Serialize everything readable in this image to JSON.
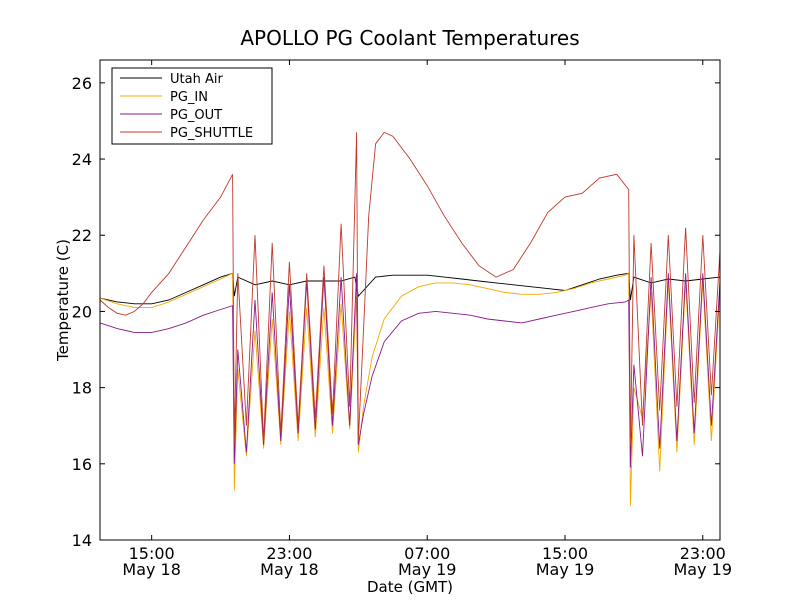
{
  "chart_data": {
    "type": "line",
    "title": "APOLLO PG Coolant Temperatures",
    "xlabel": "Date (GMT)",
    "ylabel": "Temperature (C)",
    "xlim": [
      12,
      48
    ],
    "ylim": [
      14,
      26.6
    ],
    "y_ticks": [
      14,
      16,
      18,
      20,
      22,
      24,
      26
    ],
    "x_ticks": [
      {
        "value": 15,
        "time": "15:00",
        "date": "May 18"
      },
      {
        "value": 23,
        "time": "23:00",
        "date": "May 18"
      },
      {
        "value": 31,
        "time": "07:00",
        "date": "May 19"
      },
      {
        "value": 39,
        "time": "15:00",
        "date": "May 19"
      },
      {
        "value": 47,
        "time": "23:00",
        "date": "May 19"
      }
    ],
    "legend_position": "top-left",
    "series": [
      {
        "name": "Utah Air",
        "color": "#000000",
        "x": [
          12,
          13,
          14,
          15,
          16,
          17,
          18,
          19,
          19.7,
          19.8,
          20.0,
          21,
          22,
          23,
          24,
          25,
          26,
          26.8,
          27.0,
          28,
          29,
          30,
          31,
          32,
          33,
          34,
          35,
          36,
          37,
          38,
          39,
          40,
          41,
          42,
          42.7,
          42.8,
          43.0,
          44,
          45,
          46,
          47,
          48
        ],
        "values": [
          20.35,
          20.25,
          20.2,
          20.2,
          20.3,
          20.5,
          20.7,
          20.9,
          21.0,
          20.4,
          20.9,
          20.7,
          20.8,
          20.7,
          20.8,
          20.8,
          20.8,
          20.9,
          20.4,
          20.9,
          20.95,
          20.95,
          20.95,
          20.9,
          20.85,
          20.8,
          20.75,
          20.7,
          20.65,
          20.6,
          20.55,
          20.7,
          20.85,
          20.95,
          21.0,
          20.3,
          20.9,
          20.75,
          20.85,
          20.8,
          20.85,
          20.9
        ]
      },
      {
        "name": "PG_IN",
        "color": "#f5a800",
        "x": [
          12,
          13,
          14,
          15,
          16,
          17,
          18,
          19,
          19.7,
          19.8,
          20.0,
          20.5,
          21,
          21.5,
          22,
          22.5,
          23,
          23.5,
          24,
          24.5,
          25,
          25.5,
          26,
          26.5,
          26.9,
          27.0,
          27.3,
          27.8,
          28.5,
          29.5,
          30.5,
          31.5,
          32.5,
          33.5,
          34.5,
          35.5,
          36.5,
          37.5,
          38.5,
          39.5,
          40.5,
          41.5,
          42.5,
          42.7,
          42.8,
          43.0,
          43.5,
          44,
          44.5,
          45,
          45.5,
          46,
          46.5,
          47,
          47.5,
          48
        ],
        "values": [
          20.35,
          20.2,
          20.1,
          20.1,
          20.25,
          20.45,
          20.65,
          20.85,
          21.0,
          15.3,
          18.5,
          16.2,
          19.5,
          16.4,
          19.8,
          16.5,
          20.0,
          16.6,
          20.1,
          16.7,
          20.1,
          16.8,
          20.2,
          16.9,
          20.4,
          16.3,
          17.5,
          18.8,
          19.8,
          20.4,
          20.65,
          20.75,
          20.75,
          20.7,
          20.6,
          20.5,
          20.45,
          20.45,
          20.5,
          20.6,
          20.75,
          20.85,
          20.95,
          21.0,
          14.9,
          18.0,
          17.2,
          20.5,
          15.8,
          20.8,
          16.3,
          20.8,
          16.5,
          20.8,
          16.6,
          20.6
        ]
      },
      {
        "name": "PG_OUT",
        "color": "#8b1a8b",
        "x": [
          12,
          13,
          14,
          15,
          16,
          17,
          18,
          19,
          19.7,
          19.8,
          20.0,
          20.5,
          21,
          21.5,
          22,
          22.5,
          23,
          23.5,
          24,
          24.5,
          25,
          25.5,
          26,
          26.5,
          26.9,
          27.0,
          27.3,
          27.8,
          28.5,
          29.5,
          30.5,
          31.5,
          32.5,
          33.5,
          34.5,
          35.5,
          36.5,
          37.5,
          38.5,
          39.5,
          40.5,
          41.5,
          42.5,
          42.7,
          42.8,
          43.0,
          43.5,
          44,
          44.5,
          45,
          45.5,
          46,
          46.5,
          47,
          47.5,
          48
        ],
        "values": [
          19.7,
          19.55,
          19.45,
          19.45,
          19.55,
          19.7,
          19.9,
          20.05,
          20.15,
          16.0,
          19.0,
          16.3,
          20.3,
          16.5,
          20.5,
          16.6,
          20.7,
          16.8,
          20.8,
          16.9,
          20.9,
          17.0,
          20.9,
          17.0,
          21.0,
          16.5,
          17.3,
          18.3,
          19.2,
          19.75,
          19.95,
          20.0,
          19.95,
          19.9,
          19.8,
          19.75,
          19.7,
          19.8,
          19.9,
          20.0,
          20.1,
          20.2,
          20.25,
          20.3,
          15.9,
          18.6,
          16.2,
          20.9,
          16.4,
          21.0,
          16.6,
          21.0,
          16.8,
          21.0,
          17.0,
          20.8
        ]
      },
      {
        "name": "PG_SHUTTLE",
        "color": "#c0392b",
        "x": [
          12,
          12.5,
          13,
          13.5,
          14,
          14.5,
          15,
          16,
          17,
          18,
          19,
          19.7,
          19.8,
          20.0,
          20.5,
          21,
          21.5,
          22,
          22.5,
          23,
          23.5,
          24,
          24.5,
          25,
          25.5,
          26,
          26.5,
          26.9,
          27.0,
          27.3,
          27.6,
          28.0,
          28.5,
          29,
          30,
          31,
          32,
          33,
          34,
          35,
          36,
          37,
          38,
          39,
          40,
          41,
          42,
          42.7,
          42.8,
          43.0,
          43.5,
          44,
          44.5,
          45,
          45.5,
          46,
          46.5,
          47,
          47.5,
          48
        ],
        "values": [
          20.3,
          20.1,
          19.95,
          19.9,
          20.0,
          20.2,
          20.5,
          21.0,
          21.7,
          22.4,
          23.0,
          23.6,
          16.5,
          21.0,
          17.0,
          22.0,
          16.6,
          21.8,
          16.8,
          21.3,
          17.0,
          21.0,
          17.2,
          21.2,
          17.3,
          22.3,
          17.5,
          24.7,
          16.6,
          19.5,
          22.5,
          24.4,
          24.7,
          24.6,
          24.0,
          23.3,
          22.5,
          21.8,
          21.2,
          20.9,
          21.1,
          21.8,
          22.6,
          23.0,
          23.1,
          23.5,
          23.6,
          23.2,
          16.5,
          22.0,
          17.0,
          21.8,
          17.4,
          22.0,
          17.5,
          22.2,
          17.6,
          22.0,
          17.8,
          21.6
        ]
      }
    ]
  }
}
